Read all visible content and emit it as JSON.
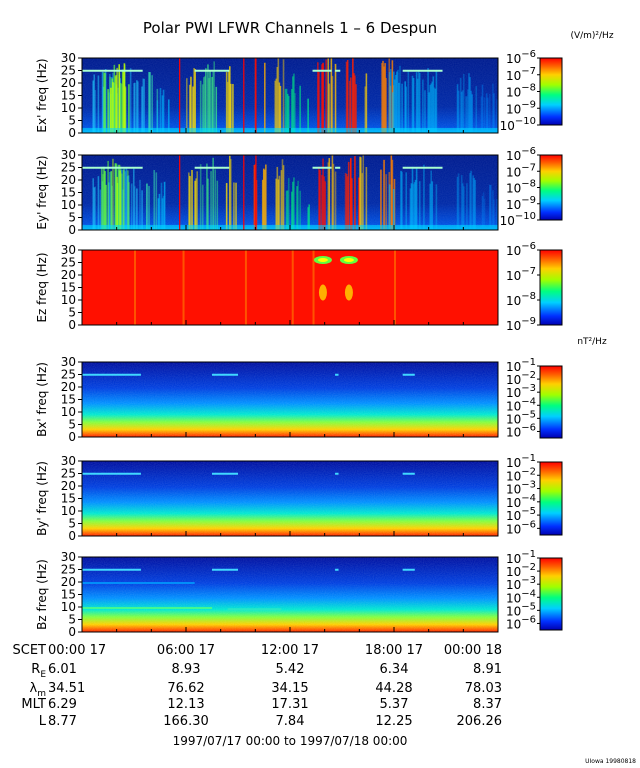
{
  "chart_data": {
    "type": "heatmap",
    "title": "Polar PWI LFWR Channels 1 – 6 Despun",
    "electric_unit": "(V/m)²/Hz",
    "magnetic_unit": "nT²/Hz",
    "x_range_hours": [
      0,
      24
    ],
    "panels": [
      {
        "ylabel": "Ex' freq (Hz)",
        "yticks": [
          0,
          5,
          10,
          15,
          20,
          25,
          30
        ],
        "ylim": [
          0,
          30
        ],
        "colorbar_exps": [
          -6,
          -7,
          -8,
          -9,
          -10
        ],
        "colorbar_range": [
          -10,
          -6
        ]
      },
      {
        "ylabel": "Ey' freq (Hz)",
        "yticks": [
          0,
          5,
          10,
          15,
          20,
          25,
          30
        ],
        "ylim": [
          0,
          30
        ],
        "colorbar_exps": [
          -6,
          -7,
          -8,
          -9,
          -10
        ],
        "colorbar_range": [
          -10,
          -6
        ]
      },
      {
        "ylabel": "Ez freq (Hz)",
        "yticks": [
          0,
          5,
          10,
          15,
          20,
          25,
          30
        ],
        "ylim": [
          0,
          30
        ],
        "colorbar_exps": [
          -6,
          -7,
          -8,
          -9
        ],
        "colorbar_range": [
          -9,
          -6
        ]
      },
      {
        "ylabel": "Bx' freq (Hz)",
        "yticks": [
          0,
          5,
          10,
          15,
          20,
          25,
          30
        ],
        "ylim": [
          0,
          30
        ],
        "colorbar_exps": [
          -1,
          -2,
          -3,
          -4,
          -5,
          -6
        ],
        "colorbar_range": [
          -6.5,
          -1
        ]
      },
      {
        "ylabel": "By' freq (Hz)",
        "yticks": [
          0,
          5,
          10,
          15,
          20,
          25,
          30
        ],
        "ylim": [
          0,
          30
        ],
        "colorbar_exps": [
          -1,
          -2,
          -3,
          -4,
          -5,
          -6
        ],
        "colorbar_range": [
          -6.5,
          -1
        ]
      },
      {
        "ylabel": "Bz freq (Hz)",
        "yticks": [
          0,
          5,
          10,
          15,
          20,
          25,
          30
        ],
        "ylim": [
          0,
          30
        ],
        "colorbar_exps": [
          -1,
          -2,
          -3,
          -4,
          -5,
          -6
        ],
        "colorbar_range": [
          -6.5,
          -1
        ]
      }
    ],
    "ephemeris": {
      "rows": [
        {
          "label": "SCET",
          "values": [
            "00:00 17",
            "06:00 17",
            "12:00 17",
            "18:00 17",
            "00:00 18"
          ]
        },
        {
          "label": "RE",
          "values": [
            "6.01",
            "8.93",
            "5.42",
            "6.34",
            "8.91"
          ]
        },
        {
          "label": "λm",
          "values": [
            "34.51",
            "76.62",
            "34.15",
            "44.28",
            "78.03"
          ]
        },
        {
          "label": "MLT",
          "values": [
            "6.29",
            "12.13",
            "17.31",
            "5.37",
            "8.37"
          ]
        },
        {
          "label": "L",
          "values": [
            "8.77",
            "166.30",
            "7.84",
            "12.25",
            "206.26"
          ]
        }
      ]
    },
    "date_range": "1997/07/17 00:00 to 1997/07/18 00:00",
    "credit": "UIowa 19980818"
  }
}
